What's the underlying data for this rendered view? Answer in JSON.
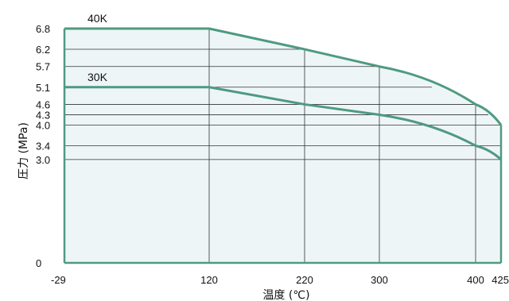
{
  "chart_data": {
    "type": "area",
    "xlabel": "温度 (℃)",
    "ylabel": "圧力 (MPa)",
    "x_ticks": [
      "-29",
      "120",
      "220",
      "300",
      "400",
      "425"
    ],
    "y_ticks": [
      "0",
      "3.0",
      "3.4",
      "4.0",
      "4.3",
      "4.6",
      "5.1",
      "5.7",
      "6.2",
      "6.8"
    ],
    "x_tick_values": [
      -29,
      120,
      220,
      300,
      400,
      425
    ],
    "y_tick_values": [
      0,
      3.0,
      3.4,
      4.0,
      4.3,
      4.6,
      5.1,
      5.7,
      6.2,
      6.8
    ],
    "ylim": [
      0,
      6.8
    ],
    "series": [
      {
        "name": "40K",
        "x": [
          -29,
          120,
          220,
          300,
          400,
          425
        ],
        "y": [
          6.8,
          6.8,
          6.2,
          5.7,
          4.6,
          4.0
        ],
        "curve_from_x": 300
      },
      {
        "name": "30K",
        "x": [
          -29,
          120,
          220,
          300,
          400,
          425
        ],
        "y": [
          5.1,
          5.1,
          4.6,
          4.3,
          3.4,
          3.0
        ],
        "curve_from_x": 300
      }
    ],
    "grid_vertical_at": [
      120,
      220,
      300,
      400
    ],
    "colors": {
      "line": "#4e9a80",
      "fill": "#eef5f7",
      "grid": "#333333",
      "text": "#111111"
    }
  }
}
